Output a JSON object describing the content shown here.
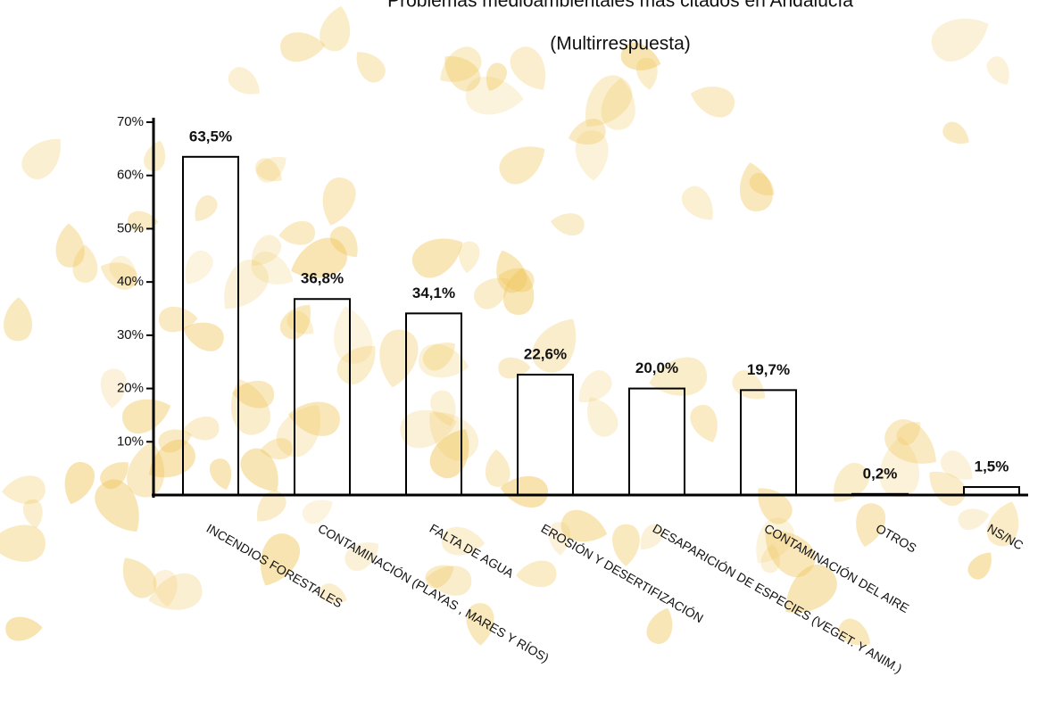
{
  "chart_data": {
    "type": "bar",
    "title": "Problemas medioambientales más citados en Andalucía",
    "subtitle": "(Multirrespuesta)",
    "categories": [
      "INCENDIOS  FORESTALES",
      "CONTAMINACIÓN (PLAYAS , MARES Y RÍOS)",
      "FALTA DE AGUA",
      "EROSIÓN Y DESERTIFIZACIÓN",
      "DESAPARICIÓN DE ESPECIES (VEGET. Y ANIM.)",
      "CONTAMINACIÓN DEL AIRE",
      "OTROS",
      "NS/NC"
    ],
    "values": [
      63.5,
      36.8,
      34.1,
      22.6,
      20.0,
      19.7,
      0.2,
      1.5
    ],
    "value_labels": [
      "63,5%",
      "36,8%",
      "34,1%",
      "22,6%",
      "20,0%",
      "19,7%",
      "0,2%",
      "1,5%"
    ],
    "color": "none",
    "stroke": "#000",
    "ylim": [
      0,
      70
    ],
    "yticks": [
      {
        "value": 10,
        "label": "10%"
      },
      {
        "value": 20,
        "label": "20%"
      },
      {
        "value": 30,
        "label": "30%"
      },
      {
        "value": 40,
        "label": "40%"
      },
      {
        "value": 50,
        "label": "50%"
      },
      {
        "value": 60,
        "label": "60%"
      },
      {
        "value": 70,
        "label": "70%"
      }
    ],
    "grid": false
  }
}
